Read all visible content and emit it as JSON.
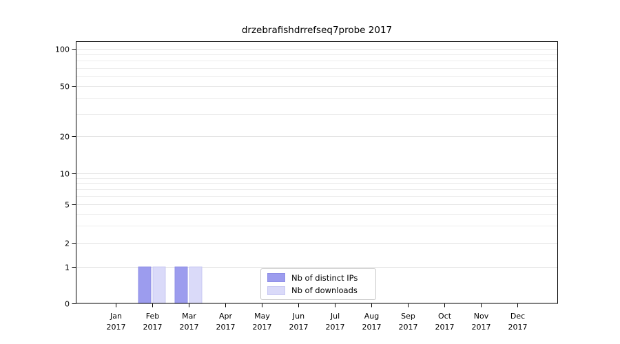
{
  "title": "drzebrafishdrrefseq7probe 2017",
  "chart_data": {
    "type": "bar",
    "title": "drzebrafishdrrefseq7probe 2017",
    "categories": [
      "Jan 2017",
      "Feb 2017",
      "Mar 2017",
      "Apr 2017",
      "May 2017",
      "Jun 2017",
      "Jul 2017",
      "Aug 2017",
      "Sep 2017",
      "Oct 2017",
      "Nov 2017",
      "Dec 2017"
    ],
    "series": [
      {
        "name": "Nb of distinct IPs",
        "color": "#9c9cee",
        "edge_color": "#8f8fe6",
        "values": [
          0,
          1,
          1,
          0,
          0,
          0,
          0,
          0,
          0,
          0,
          0,
          0
        ]
      },
      {
        "name": "Nb of downloads",
        "color": "#dadaf9",
        "edge_color": "#c8c8f2",
        "values": [
          0,
          1,
          1,
          0,
          0,
          0,
          0,
          0,
          0,
          0,
          0,
          0
        ]
      }
    ],
    "xlabel": "",
    "ylabel": "",
    "yscale": "symlog",
    "ylim": [
      0,
      115
    ],
    "y_ticks": [
      0,
      1,
      2,
      5,
      10,
      20,
      50,
      100
    ],
    "y_minor_gridlines": [
      3,
      4,
      6,
      7,
      8,
      9,
      30,
      40,
      60,
      70,
      80,
      90
    ],
    "grid": "horizontal",
    "legend": {
      "position": "lower-center-inside",
      "items": [
        "Nb of distinct IPs",
        "Nb of downloads"
      ]
    }
  }
}
